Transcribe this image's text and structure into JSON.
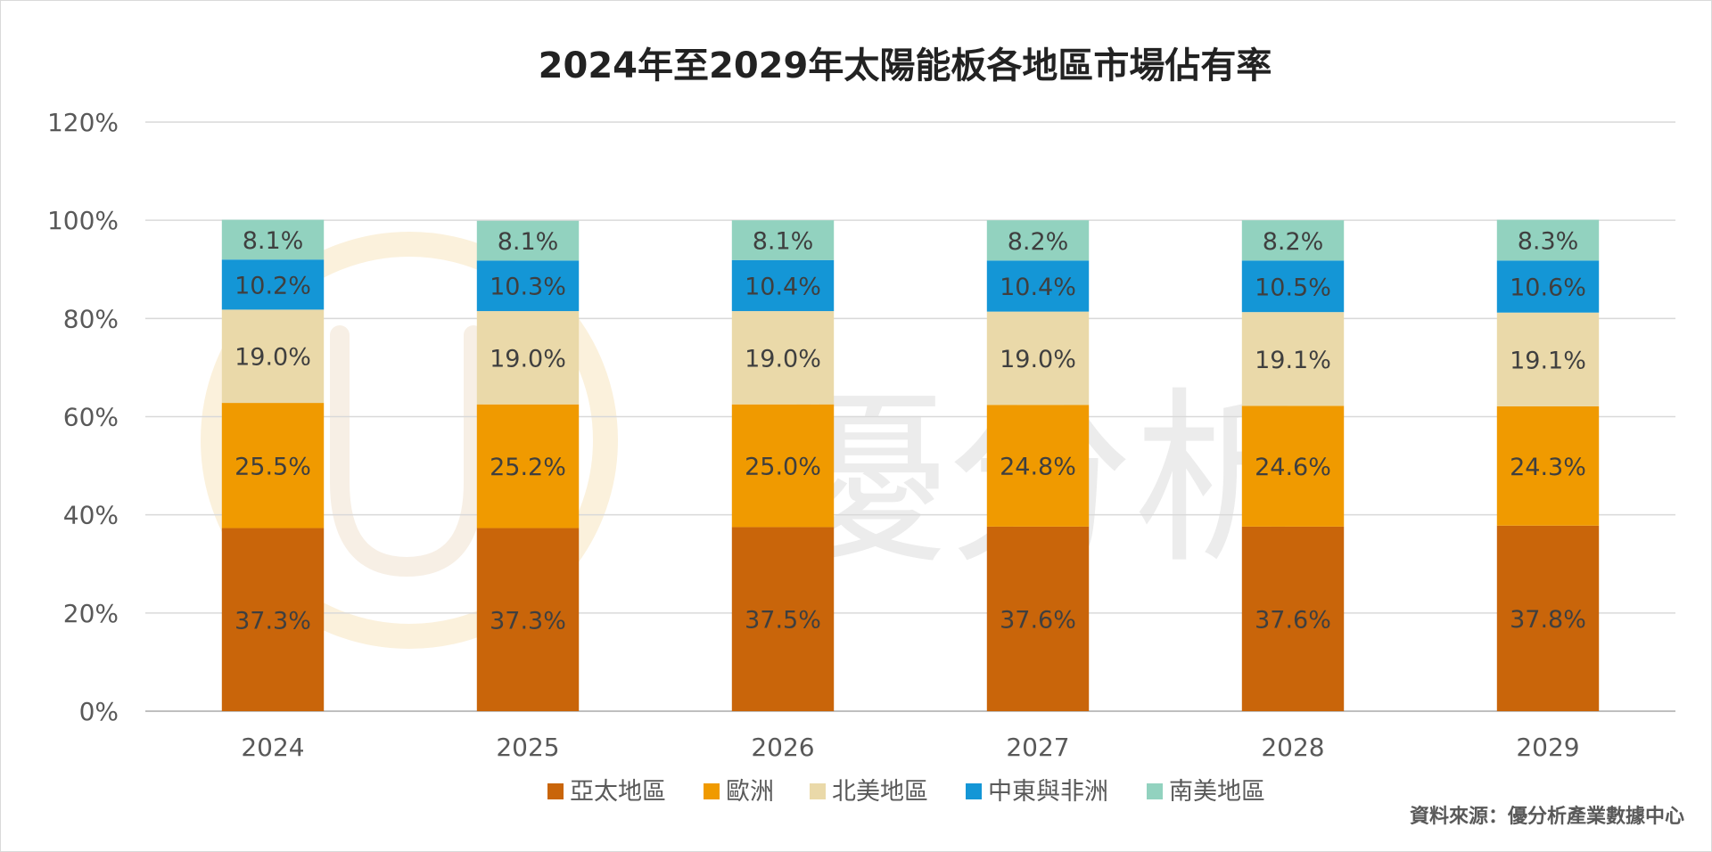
{
  "chart_data": {
    "type": "bar",
    "stacked": true,
    "title": "2024年至2029年太陽能板各地區市場佔有率",
    "categories": [
      "2024",
      "2025",
      "2026",
      "2027",
      "2028",
      "2029"
    ],
    "series": [
      {
        "name": "亞太地區",
        "color": "#C9650A",
        "values": [
          37.3,
          37.3,
          37.5,
          37.6,
          37.6,
          37.8
        ],
        "labels": [
          "37.3%",
          "37.3%",
          "37.5%",
          "37.6%",
          "37.6%",
          "37.8%"
        ]
      },
      {
        "name": "歐洲",
        "color": "#F09A00",
        "values": [
          25.5,
          25.2,
          25.0,
          24.8,
          24.6,
          24.3
        ],
        "labels": [
          "25.5%",
          "25.2%",
          "25.0%",
          "24.8%",
          "24.6%",
          "24.3%"
        ]
      },
      {
        "name": "北美地區",
        "color": "#EAD9A9",
        "values": [
          19.0,
          19.0,
          19.0,
          19.0,
          19.1,
          19.1
        ],
        "labels": [
          "19.0%",
          "19.0%",
          "19.0%",
          "19.0%",
          "19.1%",
          "19.1%"
        ]
      },
      {
        "name": "中東與非洲",
        "color": "#1496D6",
        "values": [
          10.2,
          10.3,
          10.4,
          10.4,
          10.5,
          10.6
        ],
        "labels": [
          "10.2%",
          "10.3%",
          "10.4%",
          "10.4%",
          "10.5%",
          "10.6%"
        ]
      },
      {
        "name": "南美地區",
        "color": "#92D2BF",
        "values": [
          8.1,
          8.1,
          8.1,
          8.2,
          8.2,
          8.3
        ],
        "labels": [
          "8.1%",
          "8.1%",
          "8.1%",
          "8.2%",
          "8.2%",
          "8.3%"
        ]
      }
    ],
    "y_ticks": [
      "0%",
      "20%",
      "40%",
      "60%",
      "80%",
      "100%",
      "120%"
    ],
    "ylim": [
      0,
      120
    ],
    "grid": true,
    "legend_position": "bottom",
    "source": "資料來源：優分析產業數據中心",
    "watermark_text": "優分析"
  }
}
